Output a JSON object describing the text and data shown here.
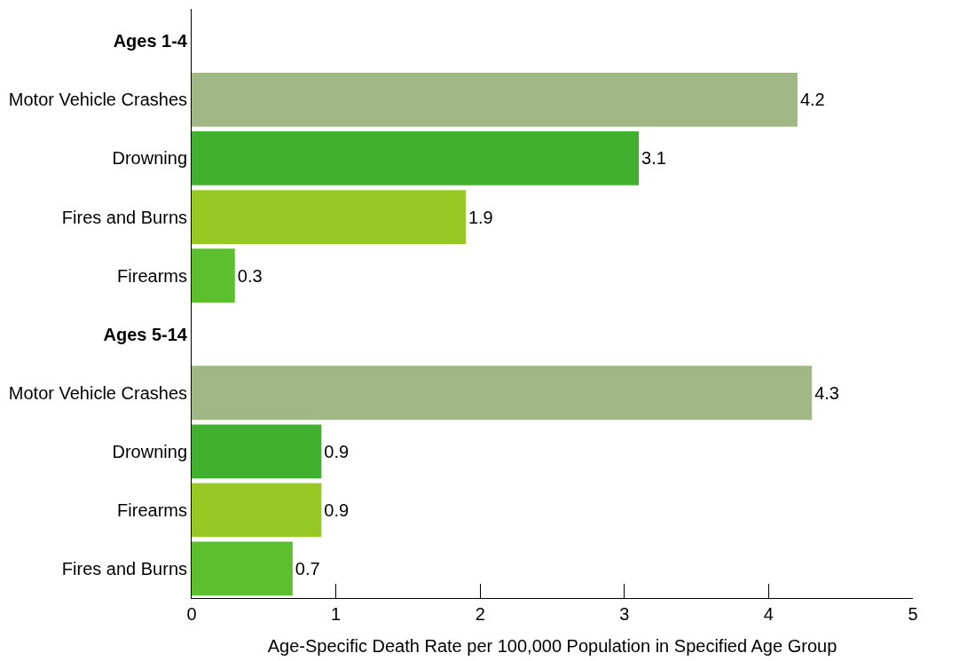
{
  "chart_data": {
    "type": "bar",
    "orientation": "horizontal",
    "categories": [
      "Ages 1-4",
      "Motor Vehicle Crashes",
      "Drowning",
      "Fires and Burns",
      "Firearms",
      "Ages 5-14",
      "Motor Vehicle Crashes",
      "Drowning",
      "Firearms",
      "Fires and Burns"
    ],
    "values": [
      null,
      4.2,
      3.1,
      1.9,
      0.3,
      null,
      4.3,
      0.9,
      0.9,
      0.7
    ],
    "colors": [
      null,
      "#a0b886",
      "#42b02f",
      "#96c823",
      "#5bbf2e",
      null,
      "#a0b886",
      "#42b02f",
      "#96c823",
      "#5bbf2e"
    ],
    "xlabel": "Age-Specific Death Rate per 100,000 Population in Specified Age Group",
    "xlim": [
      0,
      5
    ],
    "xticks": [
      0,
      1,
      2,
      3,
      4,
      5
    ],
    "data_labels": true
  }
}
